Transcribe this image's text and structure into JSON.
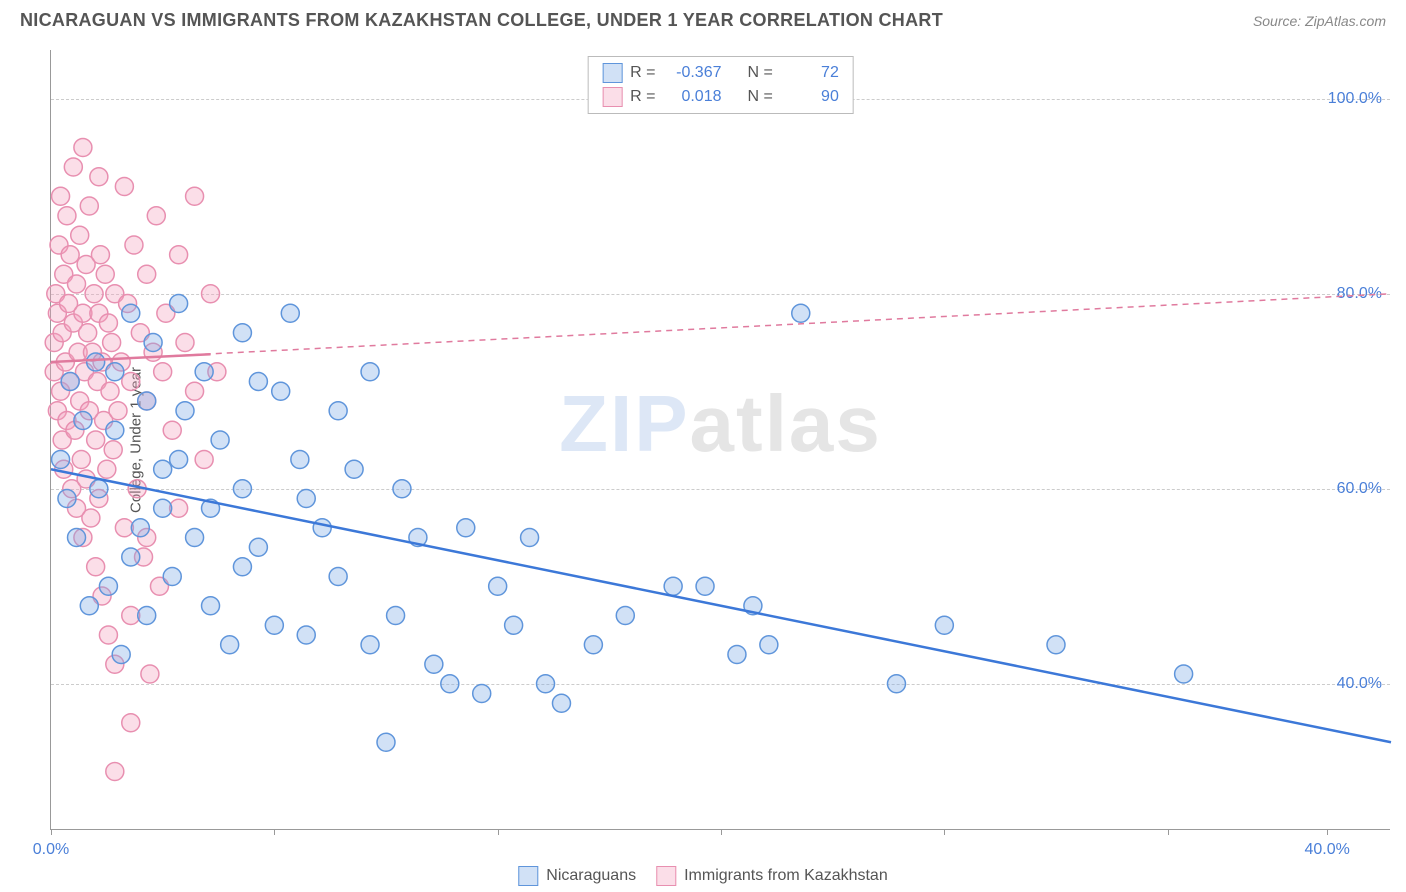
{
  "title": "NICARAGUAN VS IMMIGRANTS FROM KAZAKHSTAN COLLEGE, UNDER 1 YEAR CORRELATION CHART",
  "source": "Source: ZipAtlas.com",
  "ylabel": "College, Under 1 year",
  "watermark_a": "ZIP",
  "watermark_b": "atlas",
  "background_color": "#ffffff",
  "grid_color": "#cccccc",
  "axis_color": "#999999",
  "tick_color": "#4a7fd8",
  "chart": {
    "type": "scatter",
    "xlim": [
      0,
      42
    ],
    "ylim": [
      25,
      105
    ],
    "ytick_labels": [
      "40.0%",
      "60.0%",
      "80.0%",
      "100.0%"
    ],
    "ytick_vals": [
      40,
      60,
      80,
      100
    ],
    "xtick_positions": [
      0,
      7,
      14,
      21,
      28,
      35,
      40
    ],
    "xtick_labels": {
      "0": "0.0%",
      "40": "40.0%"
    },
    "marker_radius": 9,
    "marker_stroke_width": 1.5,
    "series": {
      "s1": {
        "name": "Nicaraguans",
        "fill": "rgba(122,168,230,0.35)",
        "stroke": "#5f95db",
        "R": "-0.367",
        "N": "72",
        "trend": {
          "x1": 0,
          "y1": 62,
          "x2": 42,
          "y2": 34,
          "color": "#3c78d8",
          "width": 2.5,
          "dash": "none"
        },
        "points": [
          [
            0.3,
            63
          ],
          [
            0.5,
            59
          ],
          [
            0.6,
            71
          ],
          [
            0.8,
            55
          ],
          [
            1.0,
            67
          ],
          [
            1.2,
            48
          ],
          [
            1.4,
            73
          ],
          [
            1.5,
            60
          ],
          [
            1.8,
            50
          ],
          [
            2.0,
            66
          ],
          [
            2.2,
            43
          ],
          [
            2.5,
            78
          ],
          [
            2.8,
            56
          ],
          [
            3.0,
            47
          ],
          [
            3.0,
            69
          ],
          [
            3.2,
            75
          ],
          [
            3.5,
            62
          ],
          [
            3.8,
            51
          ],
          [
            4.0,
            79
          ],
          [
            4.2,
            68
          ],
          [
            4.5,
            55
          ],
          [
            4.8,
            72
          ],
          [
            5.0,
            48
          ],
          [
            5.3,
            65
          ],
          [
            5.6,
            44
          ],
          [
            6.0,
            76
          ],
          [
            6.0,
            60
          ],
          [
            6.5,
            71
          ],
          [
            6.5,
            54
          ],
          [
            7.0,
            46
          ],
          [
            7.2,
            70
          ],
          [
            7.5,
            78
          ],
          [
            7.8,
            63
          ],
          [
            8.0,
            45
          ],
          [
            8.5,
            56
          ],
          [
            9.0,
            68
          ],
          [
            9.0,
            51
          ],
          [
            9.5,
            62
          ],
          [
            10.0,
            44
          ],
          [
            10.0,
            72
          ],
          [
            10.5,
            34
          ],
          [
            10.8,
            47
          ],
          [
            11.0,
            60
          ],
          [
            11.5,
            55
          ],
          [
            12.0,
            42
          ],
          [
            12.5,
            40
          ],
          [
            13.0,
            56
          ],
          [
            13.5,
            39
          ],
          [
            14.0,
            50
          ],
          [
            14.5,
            46
          ],
          [
            15.0,
            55
          ],
          [
            15.5,
            40
          ],
          [
            16.0,
            38
          ],
          [
            17.0,
            44
          ],
          [
            18.0,
            47
          ],
          [
            19.5,
            50
          ],
          [
            20.5,
            50
          ],
          [
            21.5,
            43
          ],
          [
            22.0,
            48
          ],
          [
            22.5,
            44
          ],
          [
            23.5,
            78
          ],
          [
            26.5,
            40
          ],
          [
            28.0,
            46
          ],
          [
            31.5,
            44
          ],
          [
            35.5,
            41
          ],
          [
            2.0,
            72
          ],
          [
            3.5,
            58
          ],
          [
            4.0,
            63
          ],
          [
            5.0,
            58
          ],
          [
            2.5,
            53
          ],
          [
            6.0,
            52
          ],
          [
            8.0,
            59
          ]
        ]
      },
      "s2": {
        "name": "Immigrants from Kazakhstan",
        "fill": "rgba(244,160,190,0.35)",
        "stroke": "#e88fb0",
        "R": "0.018",
        "N": "90",
        "trend": {
          "x1": 0,
          "y1": 73,
          "x2": 42,
          "y2": 80,
          "color": "#e07a9e",
          "width": 1.5,
          "dash": "6,5"
        },
        "trend_solid": {
          "x1": 0,
          "y1": 73,
          "x2": 5,
          "y2": 73.8,
          "color": "#e07a9e",
          "width": 2.5
        },
        "points": [
          [
            0.1,
            75
          ],
          [
            0.1,
            72
          ],
          [
            0.15,
            80
          ],
          [
            0.2,
            68
          ],
          [
            0.2,
            78
          ],
          [
            0.25,
            85
          ],
          [
            0.3,
            70
          ],
          [
            0.3,
            90
          ],
          [
            0.35,
            65
          ],
          [
            0.35,
            76
          ],
          [
            0.4,
            82
          ],
          [
            0.4,
            62
          ],
          [
            0.45,
            73
          ],
          [
            0.5,
            88
          ],
          [
            0.5,
            67
          ],
          [
            0.55,
            79
          ],
          [
            0.6,
            71
          ],
          [
            0.6,
            84
          ],
          [
            0.65,
            60
          ],
          [
            0.7,
            77
          ],
          [
            0.7,
            93
          ],
          [
            0.75,
            66
          ],
          [
            0.8,
            81
          ],
          [
            0.8,
            58
          ],
          [
            0.85,
            74
          ],
          [
            0.9,
            69
          ],
          [
            0.9,
            86
          ],
          [
            0.95,
            63
          ],
          [
            1.0,
            78
          ],
          [
            1.0,
            55
          ],
          [
            1.05,
            72
          ],
          [
            1.1,
            83
          ],
          [
            1.1,
            61
          ],
          [
            1.15,
            76
          ],
          [
            1.2,
            68
          ],
          [
            1.2,
            89
          ],
          [
            1.25,
            57
          ],
          [
            1.3,
            74
          ],
          [
            1.35,
            80
          ],
          [
            1.4,
            65
          ],
          [
            1.4,
            52
          ],
          [
            1.45,
            71
          ],
          [
            1.5,
            78
          ],
          [
            1.5,
            59
          ],
          [
            1.55,
            84
          ],
          [
            1.6,
            49
          ],
          [
            1.6,
            73
          ],
          [
            1.65,
            67
          ],
          [
            1.7,
            82
          ],
          [
            1.75,
            62
          ],
          [
            1.8,
            77
          ],
          [
            1.8,
            45
          ],
          [
            1.85,
            70
          ],
          [
            1.9,
            75
          ],
          [
            1.95,
            64
          ],
          [
            2.0,
            80
          ],
          [
            2.0,
            42
          ],
          [
            2.1,
            68
          ],
          [
            2.2,
            73
          ],
          [
            2.3,
            91
          ],
          [
            2.3,
            56
          ],
          [
            2.4,
            79
          ],
          [
            2.5,
            47
          ],
          [
            2.5,
            71
          ],
          [
            2.6,
            85
          ],
          [
            2.7,
            60
          ],
          [
            2.8,
            76
          ],
          [
            2.9,
            53
          ],
          [
            3.0,
            69
          ],
          [
            3.0,
            82
          ],
          [
            3.1,
            41
          ],
          [
            3.2,
            74
          ],
          [
            3.3,
            88
          ],
          [
            3.4,
            50
          ],
          [
            3.5,
            72
          ],
          [
            3.6,
            78
          ],
          [
            3.8,
            66
          ],
          [
            4.0,
            84
          ],
          [
            4.0,
            58
          ],
          [
            4.2,
            75
          ],
          [
            4.5,
            70
          ],
          [
            4.5,
            90
          ],
          [
            4.8,
            63
          ],
          [
            5.0,
            80
          ],
          [
            5.2,
            72
          ],
          [
            1.0,
            95
          ],
          [
            1.5,
            92
          ],
          [
            2.0,
            31
          ],
          [
            2.5,
            36
          ],
          [
            3.0,
            55
          ]
        ]
      }
    }
  }
}
